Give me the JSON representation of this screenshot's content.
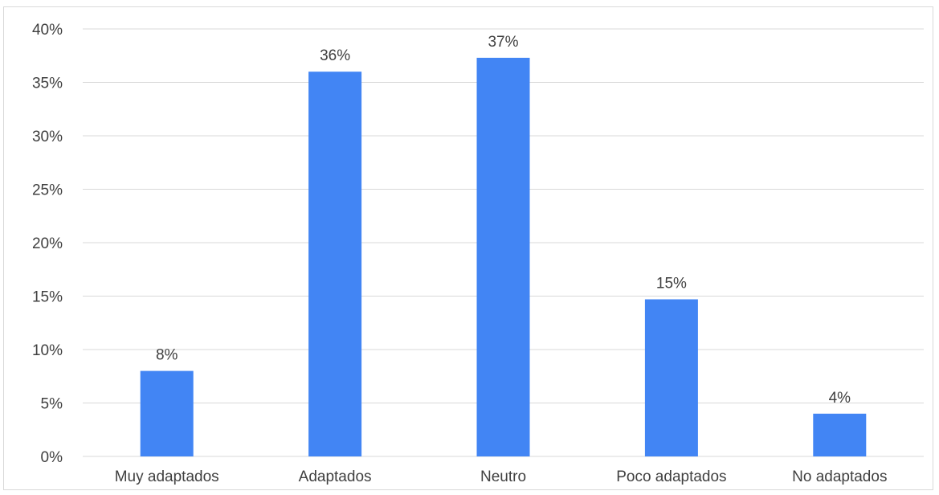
{
  "chart_data": {
    "type": "bar",
    "categories": [
      "Muy adaptados",
      "Adaptados",
      "Neutro",
      "Poco adaptados",
      "No adaptados"
    ],
    "values": [
      8,
      36,
      37.3,
      14.7,
      4
    ],
    "data_labels": [
      "8%",
      "36%",
      "37%",
      "15%",
      "4%"
    ],
    "title": "",
    "xlabel": "",
    "ylabel": "",
    "ylim": [
      0,
      40
    ],
    "yticks": [
      0,
      5,
      10,
      15,
      20,
      25,
      30,
      35,
      40
    ],
    "ytick_labels": [
      "0%",
      "5%",
      "10%",
      "15%",
      "20%",
      "25%",
      "30%",
      "35%",
      "40%"
    ],
    "grid": true,
    "legend": "none",
    "colors": {
      "bar": "#4285f4",
      "grid": "#d9d9d9",
      "text": "#404040"
    }
  }
}
